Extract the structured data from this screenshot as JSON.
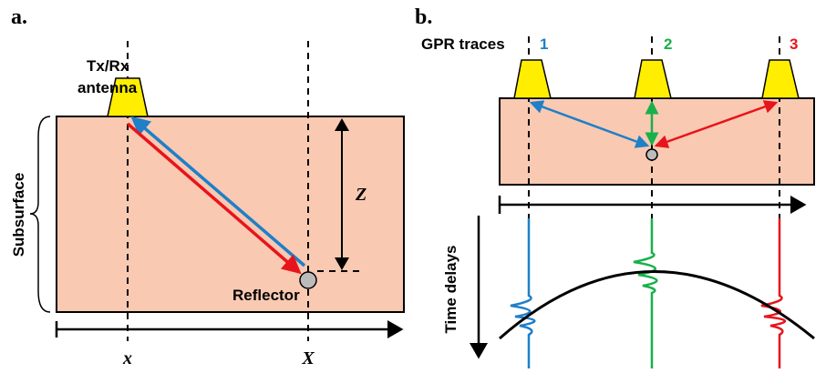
{
  "panel_a": {
    "label": "a.",
    "antenna_label_1": "Tx/Rx",
    "antenna_label_2": "antenna",
    "side_label": "Subsurface",
    "depth_label": "Z",
    "reflector_label": "Reflector",
    "x_label_left": "x",
    "x_label_right": "X"
  },
  "panel_b": {
    "label": "b.",
    "traces_label": "GPR traces",
    "trace_numbers": [
      "1",
      "2",
      "3"
    ],
    "time_label": "Time delays"
  }
}
